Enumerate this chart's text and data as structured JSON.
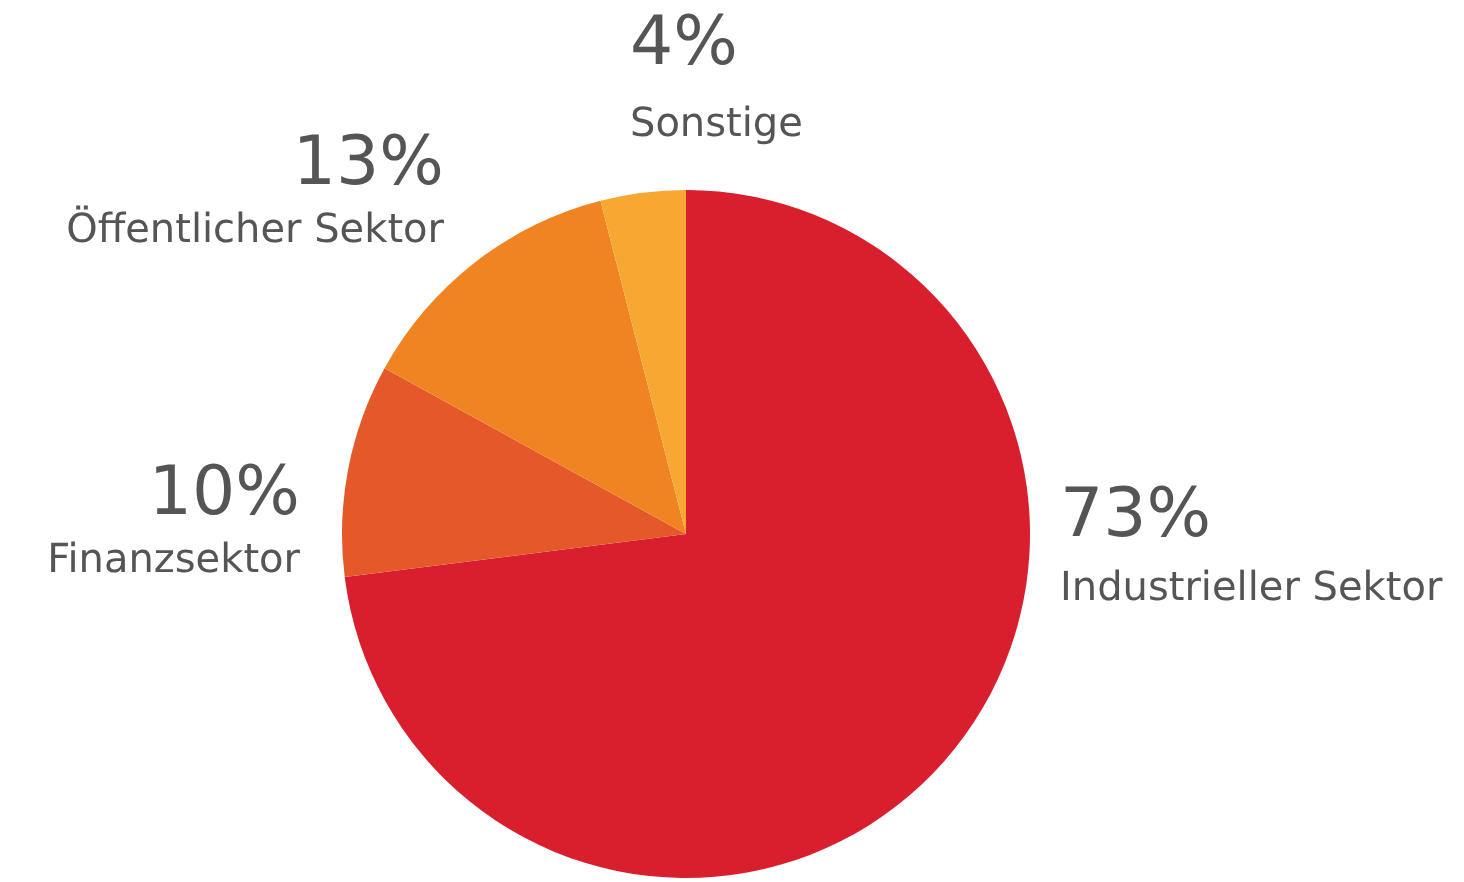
{
  "chart_data": {
    "type": "pie",
    "categories": [
      "Industrieller Sektor",
      "Finanzsektor",
      "Öffentlicher Sektor",
      "Sonstige"
    ],
    "values": [
      73,
      10,
      13,
      4
    ],
    "value_labels": [
      "73%",
      "10%",
      "13%",
      "4%"
    ],
    "colors": [
      "#d91f2e",
      "#e5582a",
      "#f08423",
      "#f7a833"
    ]
  }
}
